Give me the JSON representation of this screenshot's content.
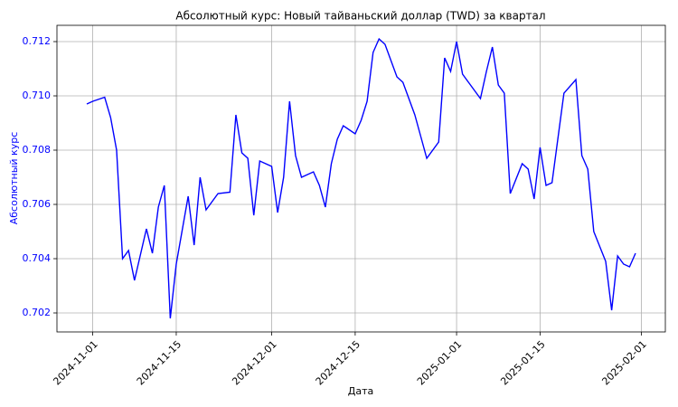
{
  "chart_data": {
    "type": "line",
    "title": "Абсолютный курс: Новый тайваньский доллар (TWD) за квартал",
    "x_label": "Дата",
    "y_label": "Абсолютный курс",
    "x": [
      "2024-10-31",
      "2024-11-01",
      "2024-11-03",
      "2024-11-04",
      "2024-11-05",
      "2024-11-06",
      "2024-11-07",
      "2024-11-08",
      "2024-11-10",
      "2024-11-11",
      "2024-11-12",
      "2024-11-13",
      "2024-11-14",
      "2024-11-15",
      "2024-11-17",
      "2024-11-18",
      "2024-11-19",
      "2024-11-20",
      "2024-11-22",
      "2024-11-24",
      "2024-11-25",
      "2024-11-26",
      "2024-11-27",
      "2024-11-28",
      "2024-11-29",
      "2024-12-01",
      "2024-12-02",
      "2024-12-03",
      "2024-12-04",
      "2024-12-05",
      "2024-12-06",
      "2024-12-08",
      "2024-12-09",
      "2024-12-10",
      "2024-12-11",
      "2024-12-12",
      "2024-12-13",
      "2024-12-15",
      "2024-12-16",
      "2024-12-17",
      "2024-12-18",
      "2024-12-19",
      "2024-12-20",
      "2024-12-22",
      "2024-12-23",
      "2024-12-25",
      "2024-12-26",
      "2024-12-27",
      "2024-12-29",
      "2024-12-30",
      "2024-12-31",
      "2025-01-01",
      "2025-01-02",
      "2025-01-03",
      "2025-01-05",
      "2025-01-06",
      "2025-01-07",
      "2025-01-08",
      "2025-01-09",
      "2025-01-10",
      "2025-01-12",
      "2025-01-13",
      "2025-01-14",
      "2025-01-15",
      "2025-01-16",
      "2025-01-17",
      "2025-01-19",
      "2025-01-21",
      "2025-01-22",
      "2025-01-23",
      "2025-01-24",
      "2025-01-26",
      "2025-01-27",
      "2025-01-28",
      "2025-01-29",
      "2025-01-30",
      "2025-01-31"
    ],
    "series": [
      {
        "name": "TWD",
        "color": "#0000ff",
        "values": [
          0.7097,
          0.7098,
          0.70995,
          0.7092,
          0.708,
          0.704,
          0.7043,
          0.7032,
          0.7051,
          0.7042,
          0.7059,
          0.7067,
          0.7018,
          0.7038,
          0.7063,
          0.7045,
          0.707,
          0.7058,
          0.7064,
          0.70645,
          0.7093,
          0.7079,
          0.7077,
          0.7056,
          0.7076,
          0.7074,
          0.7057,
          0.707,
          0.7098,
          0.7078,
          0.707,
          0.7072,
          0.7067,
          0.7059,
          0.7075,
          0.7084,
          0.7089,
          0.7086,
          0.7091,
          0.7098,
          0.7116,
          0.7121,
          0.7119,
          0.7107,
          0.7105,
          0.7093,
          0.7085,
          0.7077,
          0.7083,
          0.7114,
          0.7109,
          0.712,
          0.7108,
          0.7105,
          0.7099,
          0.7109,
          0.7118,
          0.7104,
          0.7101,
          0.7064,
          0.7075,
          0.7073,
          0.7062,
          0.7081,
          0.7067,
          0.7068,
          0.7101,
          0.7106,
          0.7078,
          0.7073,
          0.705,
          0.7039,
          0.7021,
          0.7041,
          0.7038,
          0.7037,
          0.7042
        ]
      }
    ],
    "xlim": [
      "2024-10-26",
      "2025-02-05"
    ],
    "xticks": [
      "2024-11-01",
      "2024-11-15",
      "2024-12-01",
      "2024-12-15",
      "2025-01-01",
      "2025-01-15",
      "2025-02-01"
    ],
    "ylim": [
      0.7013,
      0.7126
    ],
    "yticks": [
      0.702,
      0.704,
      0.706,
      0.708,
      {
        "value": 0.71,
        "label": "0.710"
      },
      0.712
    ],
    "axis_label_color": "#0000ff",
    "grid": true
  }
}
